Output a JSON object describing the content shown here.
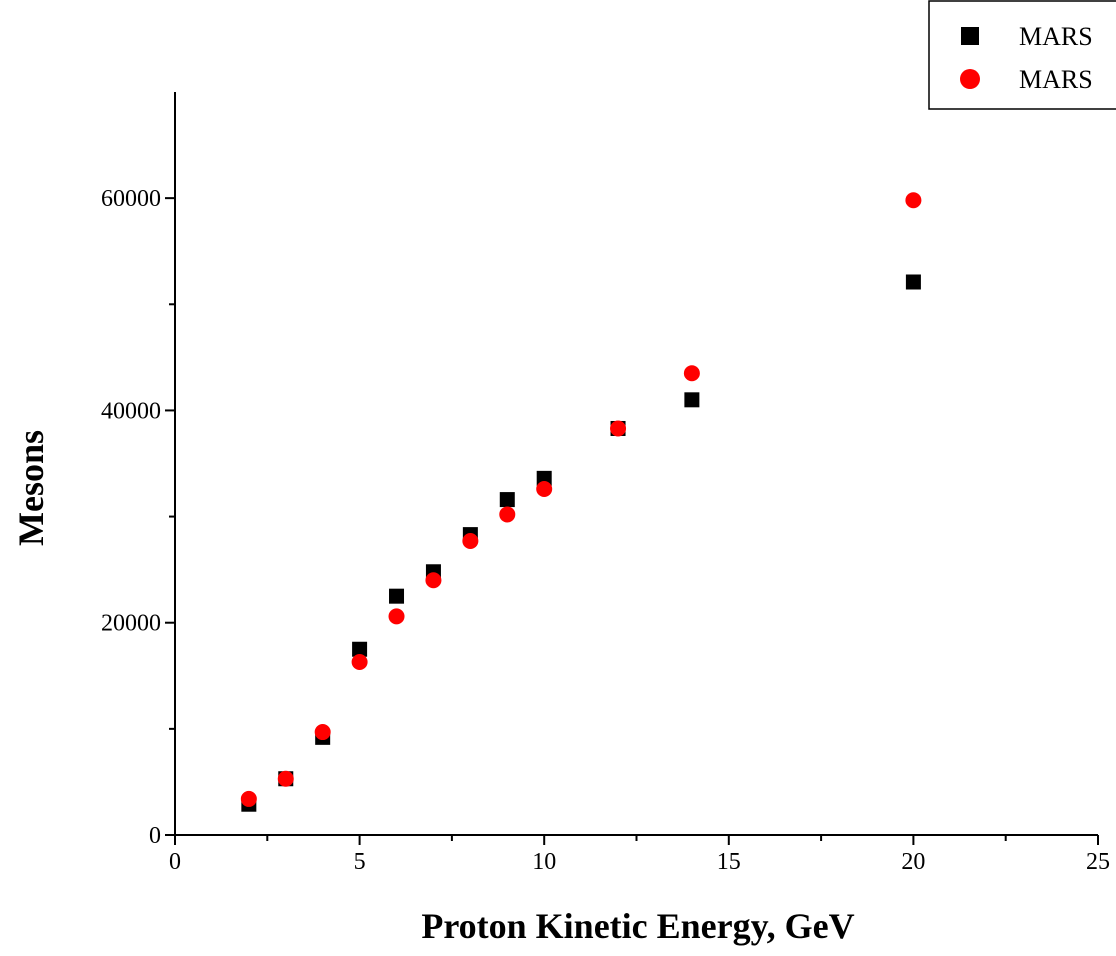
{
  "chart_data": {
    "type": "scatter",
    "title": "",
    "xlabel": "Proton Kinetic Energy, GeV",
    "ylabel": "Mesons",
    "xlim": [
      0,
      25
    ],
    "ylim": [
      0,
      70000
    ],
    "x_ticks": [
      0,
      5,
      10,
      15,
      20,
      25
    ],
    "y_ticks": [
      0,
      20000,
      40000,
      60000
    ],
    "x_tick_labels": [
      "0",
      "5",
      "10",
      "15",
      "20",
      "25"
    ],
    "y_tick_labels": [
      "0",
      "20000",
      "40000",
      "60000"
    ],
    "grid": false,
    "legend_position": "top-right",
    "series": [
      {
        "name": "MARS",
        "marker": "square",
        "color": "#000000",
        "x": [
          2,
          3,
          4,
          5,
          6,
          7,
          8,
          9,
          10,
          12,
          14,
          20
        ],
        "y": [
          2900,
          5300,
          9200,
          17500,
          22500,
          24800,
          28300,
          31600,
          33600,
          38300,
          41000,
          52100
        ]
      },
      {
        "name": "MARS",
        "marker": "circle",
        "color": "#ff0000",
        "x": [
          2,
          3,
          4,
          5,
          6,
          7,
          8,
          9,
          10,
          12,
          14,
          20
        ],
        "y": [
          3400,
          5300,
          9700,
          16300,
          20600,
          24000,
          27700,
          30200,
          32600,
          38300,
          43500,
          59800
        ]
      }
    ]
  }
}
